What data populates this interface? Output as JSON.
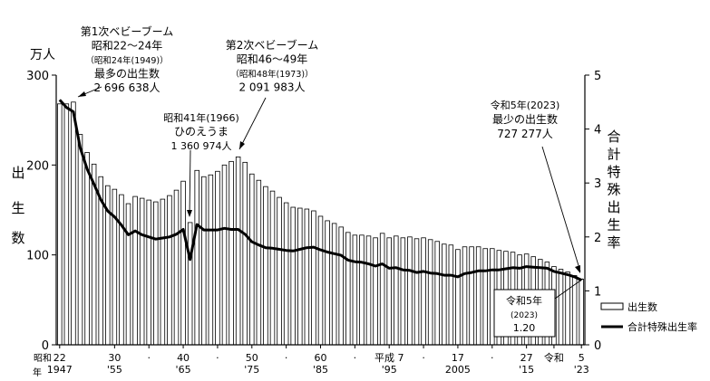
{
  "chart_data": {
    "type": "bar",
    "left_axis_unit": "万人",
    "left_axis_label_chars": [
      "出",
      "生",
      "数"
    ],
    "right_axis_label_chars": [
      "合",
      "計",
      "特",
      "殊",
      "出",
      "生",
      "率"
    ],
    "y_left": {
      "min": 0,
      "max": 300,
      "ticks": [
        0,
        100,
        200,
        300
      ]
    },
    "y_right": {
      "min": 0,
      "max": 5,
      "ticks": [
        0,
        1,
        2,
        3,
        4,
        5
      ]
    },
    "x_tick_labels": [
      {
        "year": 1947,
        "top": "22",
        "bottom": "1947"
      },
      {
        "year": 1955,
        "top": "30",
        "bottom": "'55"
      },
      {
        "year": 1960,
        "top": "·",
        "bottom": ""
      },
      {
        "year": 1965,
        "top": "40",
        "bottom": "'65"
      },
      {
        "year": 1970,
        "top": "·",
        "bottom": ""
      },
      {
        "year": 1975,
        "top": "50",
        "bottom": "'75"
      },
      {
        "year": 1980,
        "top": "·",
        "bottom": ""
      },
      {
        "year": 1985,
        "top": "60",
        "bottom": "'85"
      },
      {
        "year": 1990,
        "top": "·",
        "bottom": ""
      },
      {
        "year": 1995,
        "top": "平成 7",
        "bottom": "'95"
      },
      {
        "year": 2000,
        "top": "·",
        "bottom": ""
      },
      {
        "year": 2005,
        "top": "17",
        "bottom": "2005"
      },
      {
        "year": 2010,
        "top": "·",
        "bottom": ""
      },
      {
        "year": 2015,
        "top": "27",
        "bottom": "'15"
      },
      {
        "year": 2019,
        "top": "令和",
        "bottom": ""
      },
      {
        "year": 2023,
        "top": "5",
        "bottom": "'23"
      }
    ],
    "x_era_label": "昭和",
    "x_year_suffix": "年",
    "series": [
      {
        "name": "出生数",
        "axis": "left",
        "years": [
          1947,
          1948,
          1949,
          1950,
          1951,
          1952,
          1953,
          1954,
          1955,
          1956,
          1957,
          1958,
          1959,
          1960,
          1961,
          1962,
          1963,
          1964,
          1965,
          1966,
          1967,
          1968,
          1969,
          1970,
          1971,
          1972,
          1973,
          1974,
          1975,
          1976,
          1977,
          1978,
          1979,
          1980,
          1981,
          1982,
          1983,
          1984,
          1985,
          1986,
          1987,
          1988,
          1989,
          1990,
          1991,
          1992,
          1993,
          1994,
          1995,
          1996,
          1997,
          1998,
          1999,
          2000,
          2001,
          2002,
          2003,
          2004,
          2005,
          2006,
          2007,
          2008,
          2009,
          2010,
          2011,
          2012,
          2013,
          2014,
          2015,
          2016,
          2017,
          2018,
          2019,
          2020,
          2021,
          2022,
          2023
        ],
        "values": [
          268,
          268,
          270,
          234,
          214,
          201,
          187,
          177,
          173,
          167,
          157,
          165,
          163,
          161,
          159,
          162,
          166,
          172,
          182,
          136,
          194,
          187,
          189,
          193,
          200,
          204,
          209,
          203,
          190,
          183,
          176,
          171,
          164,
          158,
          153,
          152,
          151,
          149,
          143,
          138,
          135,
          131,
          125,
          122,
          122,
          121,
          119,
          124,
          119,
          121,
          119,
          120,
          118,
          119,
          117,
          115,
          112,
          111,
          106,
          109,
          109,
          109,
          107,
          107,
          105,
          104,
          103,
          100,
          101,
          98,
          95,
          92,
          87,
          84,
          81,
          77,
          73
        ]
      },
      {
        "name": "合計特殊出生率",
        "axis": "right",
        "years": [
          1947,
          1948,
          1949,
          1950,
          1951,
          1952,
          1953,
          1954,
          1955,
          1956,
          1957,
          1958,
          1959,
          1960,
          1961,
          1962,
          1963,
          1964,
          1965,
          1966,
          1967,
          1968,
          1969,
          1970,
          1971,
          1972,
          1973,
          1974,
          1975,
          1976,
          1977,
          1978,
          1979,
          1980,
          1981,
          1982,
          1983,
          1984,
          1985,
          1986,
          1987,
          1988,
          1989,
          1990,
          1991,
          1992,
          1993,
          1994,
          1995,
          1996,
          1997,
          1998,
          1999,
          2000,
          2001,
          2002,
          2003,
          2004,
          2005,
          2006,
          2007,
          2008,
          2009,
          2010,
          2011,
          2012,
          2013,
          2014,
          2015,
          2016,
          2017,
          2018,
          2019,
          2020,
          2021,
          2022,
          2023
        ],
        "values": [
          4.54,
          4.4,
          4.32,
          3.65,
          3.26,
          2.98,
          2.69,
          2.48,
          2.37,
          2.22,
          2.04,
          2.11,
          2.04,
          2.0,
          1.96,
          1.98,
          2.0,
          2.05,
          2.14,
          1.58,
          2.23,
          2.13,
          2.13,
          2.13,
          2.16,
          2.14,
          2.14,
          2.05,
          1.91,
          1.85,
          1.8,
          1.79,
          1.77,
          1.75,
          1.74,
          1.77,
          1.8,
          1.81,
          1.76,
          1.72,
          1.69,
          1.66,
          1.57,
          1.54,
          1.53,
          1.5,
          1.46,
          1.5,
          1.42,
          1.43,
          1.39,
          1.38,
          1.34,
          1.36,
          1.33,
          1.32,
          1.29,
          1.29,
          1.26,
          1.32,
          1.34,
          1.37,
          1.37,
          1.39,
          1.39,
          1.41,
          1.43,
          1.42,
          1.45,
          1.44,
          1.43,
          1.42,
          1.36,
          1.33,
          1.3,
          1.26,
          1.2
        ]
      }
    ],
    "annotations": {
      "first_boom": {
        "lines": [
          "第1次ベビーブーム",
          "昭和22～24年",
          "（昭和24年(1949)）",
          "最多の出生数",
          "2 696 638人"
        ]
      },
      "hinoeuma": {
        "lines": [
          "昭和41年(1966)",
          "ひのえうま",
          "1 360 974人"
        ]
      },
      "second_boom": {
        "lines": [
          "第2次ベビーブーム",
          "昭和46～49年",
          "（昭和48年(1973)）",
          "2 091 983人"
        ]
      },
      "lowest": {
        "lines": [
          "令和5年(2023)",
          "最少の出生数",
          "727 277人"
        ]
      },
      "tfr_box": {
        "lines": [
          "令和5年",
          "(2023)",
          "1.20"
        ]
      }
    },
    "legend": {
      "position": "bottom-right",
      "items": [
        {
          "label": "出生数",
          "kind": "bar"
        },
        {
          "label": "合計特殊出生率",
          "kind": "line"
        }
      ]
    }
  }
}
